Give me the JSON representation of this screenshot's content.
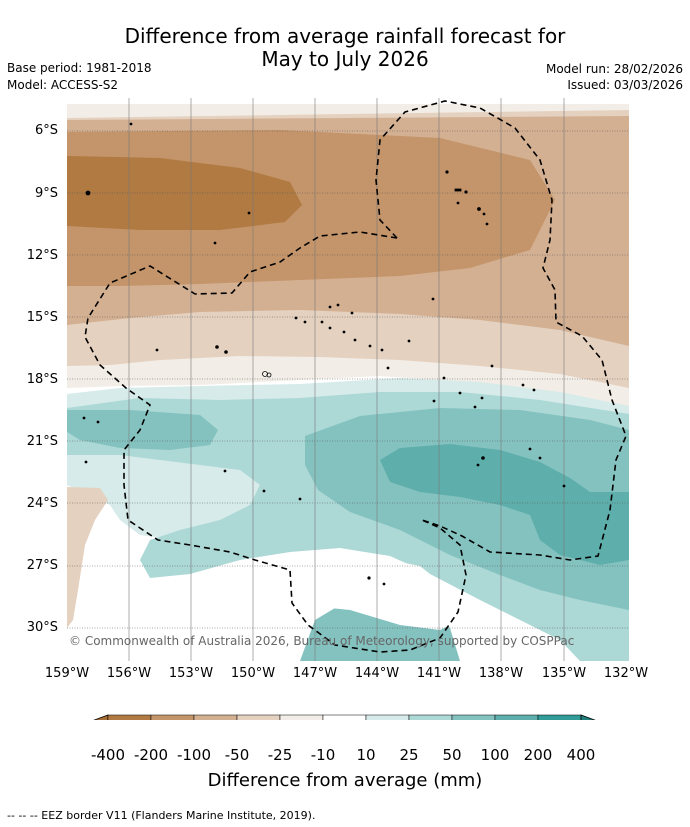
{
  "title": {
    "line1": "Difference from average rainfall forecast for",
    "line2": "May to July 2026"
  },
  "meta": {
    "base_period": "Base period: 1981-2018",
    "model": "Model: ACCESS-S2",
    "model_run": "Model run: 28/02/2026",
    "issued": "Issued: 03/03/2026"
  },
  "axes": {
    "lat_labels": [
      "6°S",
      "9°S",
      "12°S",
      "15°S",
      "18°S",
      "21°S",
      "24°S",
      "27°S",
      "30°S"
    ],
    "lon_labels": [
      "159°W",
      "156°W",
      "153°W",
      "150°W",
      "147°W",
      "144°W",
      "141°W",
      "138°W",
      "135°W",
      "132°W"
    ]
  },
  "copyright": "© Commonwealth of Australia 2026, Bureau of Meteorology, supported by COSPPac",
  "colorbar": {
    "labels": [
      "-400",
      "-200",
      "-100",
      "-50",
      "-25",
      "-10",
      "10",
      "25",
      "50",
      "100",
      "200",
      "400"
    ],
    "colors": [
      "#a66e35",
      "#b07a42",
      "#c4956a",
      "#d4b092",
      "#e5d1bf",
      "#f2ede6",
      "#ffffff",
      "#d6ebea",
      "#acd8d6",
      "#84c2c0",
      "#5eaeab",
      "#319b97",
      "#21807c"
    ],
    "title": "Difference from average (mm)"
  },
  "footer": "--  --  -- EEZ border V11 (Flanders Marine Institute, 2019)."
}
